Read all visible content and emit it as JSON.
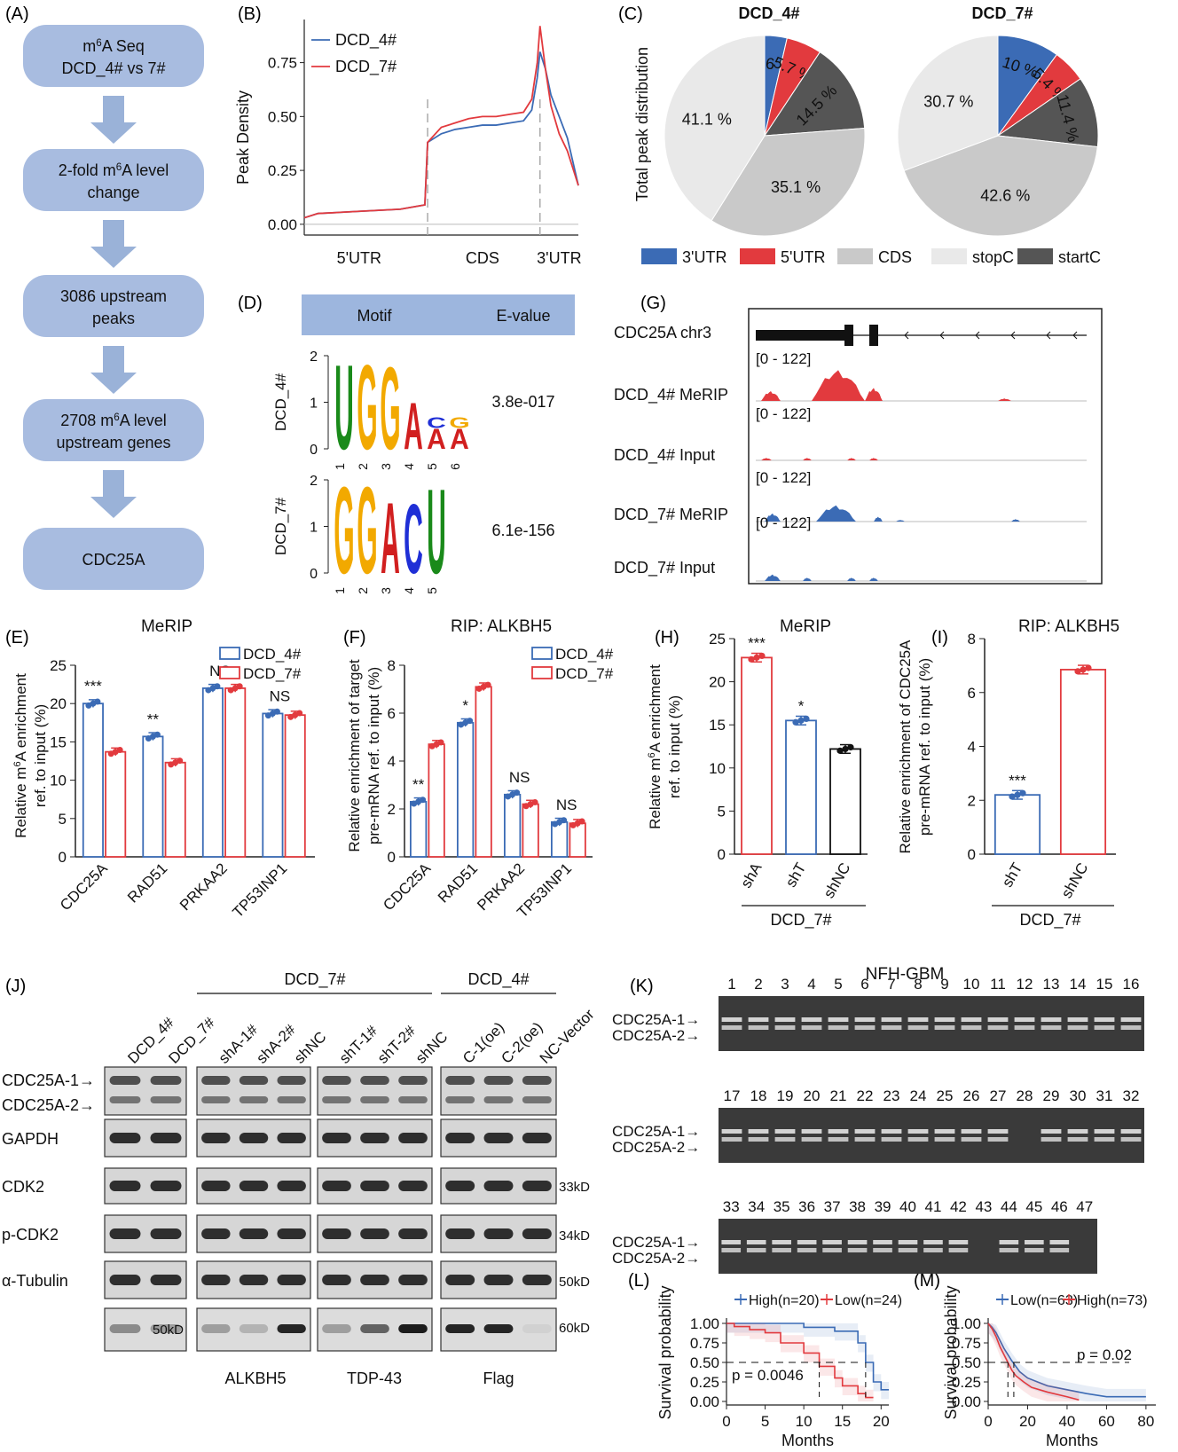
{
  "panel_labels": {
    "A": "(A)",
    "B": "(B)",
    "C": "(C)",
    "D": "(D)",
    "E": "(E)",
    "F": "(F)",
    "G": "(G)",
    "H": "(H)",
    "I": "(I)",
    "J": "(J)",
    "K": "(K)",
    "L": "(L)",
    "M": "(M)"
  },
  "colors": {
    "flow_box": "#a8bce0",
    "flow_arrow": "#9ab2d8",
    "blue": "#3b6bb5",
    "red": "#e23a3e",
    "gray_cds": "#c9c9c9",
    "gray_stop": "#e9e9e9",
    "gray_start": "#555555",
    "header": "#9db6de"
  },
  "flow": {
    "steps": [
      {
        "line1_pre": "m",
        "line1_sup": "6",
        "line1_post": "A Seq",
        "line2": "DCD_4# vs 7#"
      },
      {
        "line1_pre": "2-fold m",
        "line1_sup": "6",
        "line1_post": "A level",
        "line2": "change"
      },
      {
        "line1_pre": "3086 upstream",
        "line1_sup": "",
        "line1_post": "",
        "line2": "peaks"
      },
      {
        "line1_pre": "2708 m",
        "line1_sup": "6",
        "line1_post": "A level",
        "line2": "upstream genes"
      },
      {
        "line1_pre": "CDC25A",
        "line1_sup": "",
        "line1_post": "",
        "line2": ""
      }
    ]
  },
  "chart_data": [
    {
      "id": "B",
      "type": "line",
      "ylabel": "Peak Density",
      "x_categories": [
        "5'UTR",
        "CDS",
        "3'UTR"
      ],
      "yticks": [
        "0.00",
        "0.25",
        "0.50",
        "0.75"
      ],
      "ylim": [
        -0.05,
        0.95
      ],
      "series": [
        {
          "name": "DCD_4#",
          "color": "#3b6bb5",
          "points": [
            [
              0,
              0.03
            ],
            [
              0.05,
              0.05
            ],
            [
              0.2,
              0.06
            ],
            [
              0.35,
              0.07
            ],
            [
              0.44,
              0.09
            ],
            [
              0.45,
              0.38
            ],
            [
              0.5,
              0.42
            ],
            [
              0.55,
              0.44
            ],
            [
              0.6,
              0.45
            ],
            [
              0.65,
              0.46
            ],
            [
              0.7,
              0.46
            ],
            [
              0.75,
              0.47
            ],
            [
              0.8,
              0.48
            ],
            [
              0.83,
              0.53
            ],
            [
              0.85,
              0.68
            ],
            [
              0.86,
              0.8
            ],
            [
              0.88,
              0.72
            ],
            [
              0.9,
              0.6
            ],
            [
              0.93,
              0.5
            ],
            [
              0.96,
              0.4
            ],
            [
              1,
              0.18
            ]
          ]
        },
        {
          "name": "DCD_7#",
          "color": "#e23a3e",
          "points": [
            [
              0,
              0.03
            ],
            [
              0.05,
              0.05
            ],
            [
              0.2,
              0.06
            ],
            [
              0.35,
              0.07
            ],
            [
              0.44,
              0.09
            ],
            [
              0.45,
              0.38
            ],
            [
              0.5,
              0.45
            ],
            [
              0.55,
              0.47
            ],
            [
              0.6,
              0.49
            ],
            [
              0.65,
              0.5
            ],
            [
              0.7,
              0.5
            ],
            [
              0.75,
              0.51
            ],
            [
              0.8,
              0.52
            ],
            [
              0.83,
              0.58
            ],
            [
              0.85,
              0.75
            ],
            [
              0.86,
              0.92
            ],
            [
              0.88,
              0.72
            ],
            [
              0.9,
              0.55
            ],
            [
              0.93,
              0.42
            ],
            [
              0.96,
              0.34
            ],
            [
              1,
              0.18
            ]
          ]
        }
      ]
    },
    {
      "id": "C",
      "type": "pie",
      "ylabel": "Total peak distribution",
      "legend": [
        {
          "name": "3'UTR",
          "color": "#3b6bb5"
        },
        {
          "name": "5'UTR",
          "color": "#e23a3e"
        },
        {
          "name": "CDS",
          "color": "#c9c9c9"
        },
        {
          "name": "stopC",
          "color": "#e9e9e9"
        },
        {
          "name": "startC",
          "color": "#555555"
        }
      ],
      "pies": [
        {
          "title": "DCD_4#",
          "slices": [
            {
              "name": "3'UTR",
              "value": 3.6,
              "label": "3.6 %"
            },
            {
              "name": "5'UTR",
              "value": 5.7,
              "label": "5.7 %"
            },
            {
              "name": "startC",
              "value": 14.5,
              "label": "14.5 %"
            },
            {
              "name": "CDS",
              "value": 35.1,
              "label": "35.1 %"
            },
            {
              "name": "stopC",
              "value": 41.1,
              "label": "41.1 %"
            }
          ]
        },
        {
          "title": "DCD_7#",
          "slices": [
            {
              "name": "3'UTR",
              "value": 10,
              "label": "10 %"
            },
            {
              "name": "5'UTR",
              "value": 5.4,
              "label": "5.4 %"
            },
            {
              "name": "startC",
              "value": 11.4,
              "label": "11.4 %"
            },
            {
              "name": "CDS",
              "value": 42.6,
              "label": "42.6 %"
            },
            {
              "name": "stopC",
              "value": 30.7,
              "label": "30.7 %"
            }
          ]
        }
      ]
    },
    {
      "id": "E",
      "type": "bar",
      "title": "MeRIP",
      "ylabel_pre": "Relative m",
      "ylabel_sup": "6",
      "ylabel_post": "A enrichment",
      "ylabel2": "ref. to input (%)",
      "categories": [
        "CDC25A",
        "RAD51",
        "PRKAA2",
        "TP53INP1"
      ],
      "ylim": [
        0,
        25
      ],
      "yticks": [
        0,
        5,
        10,
        15,
        20,
        25
      ],
      "series": [
        {
          "name": "DCD_4#",
          "color": "#3b6bb5",
          "values": [
            20,
            15.7,
            22,
            18.7
          ]
        },
        {
          "name": "DCD_7#",
          "color": "#e23a3e",
          "values": [
            13.7,
            12.3,
            22,
            18.5
          ]
        }
      ],
      "significance": [
        "***",
        "**",
        "NS",
        "NS"
      ]
    },
    {
      "id": "F",
      "type": "bar",
      "title": "RIP: ALKBH5",
      "ylabel": "Relative enrichment of target",
      "ylabel2": "pre-mRNA ref. to input (%)",
      "categories": [
        "CDC25A",
        "RAD51",
        "PRKAA2",
        "TP53INP1"
      ],
      "ylim": [
        0,
        8
      ],
      "yticks": [
        0,
        2,
        4,
        6,
        8
      ],
      "series": [
        {
          "name": "DCD_4#",
          "color": "#3b6bb5",
          "values": [
            2.3,
            5.6,
            2.6,
            1.45
          ]
        },
        {
          "name": "DCD_7#",
          "color": "#e23a3e",
          "values": [
            4.7,
            7.1,
            2.2,
            1.4
          ]
        }
      ],
      "significance": [
        "**",
        "*",
        "NS",
        "NS"
      ]
    },
    {
      "id": "H",
      "type": "bar",
      "title": "MeRIP",
      "ylabel_pre": "Relative m",
      "ylabel_sup": "6",
      "ylabel_post": "A enrichment",
      "ylabel2": "ref. to input (%)",
      "categories": [
        "shA",
        "shT",
        "shNC"
      ],
      "group_label": "DCD_7#",
      "ylim": [
        0,
        25
      ],
      "yticks": [
        0,
        5,
        10,
        15,
        20,
        25
      ],
      "values": [
        22.8,
        15.5,
        12.2
      ],
      "colors": [
        "#e23a3e",
        "#3b6bb5",
        "#111111"
      ],
      "significance": [
        "***",
        "*",
        ""
      ]
    },
    {
      "id": "I",
      "type": "bar",
      "title": "RIP: ALKBH5",
      "ylabel": "Relative enrichment of CDC25A",
      "ylabel2": "pre-mRNA ref. to input (%)",
      "categories": [
        "shT",
        "shNC"
      ],
      "group_label": "DCD_7#",
      "ylim": [
        0,
        8
      ],
      "yticks": [
        0,
        2,
        4,
        6,
        8
      ],
      "values": [
        2.2,
        6.85
      ],
      "colors": [
        "#3b6bb5",
        "#e23a3e"
      ],
      "significance": [
        "***",
        ""
      ]
    },
    {
      "id": "L",
      "type": "line",
      "ylabel": "Survival probability",
      "xlabel": "Months",
      "xticks": [
        0,
        5,
        10,
        15,
        20
      ],
      "xlim": [
        0,
        21
      ],
      "yticks": [
        "0.00",
        "0.25",
        "0.50",
        "0.75",
        "1.00"
      ],
      "legend": [
        {
          "name": "High(n=20)",
          "color": "#3b6bb5"
        },
        {
          "name": "Low(n=24)",
          "color": "#e23a3e"
        }
      ],
      "pvalue": "p = 0.0046",
      "series": [
        {
          "name": "High(n=20)",
          "color": "#3b6bb5",
          "steps": [
            [
              0,
              1
            ],
            [
              10,
              1
            ],
            [
              10,
              0.95
            ],
            [
              14,
              0.95
            ],
            [
              14,
              0.9
            ],
            [
              17,
              0.9
            ],
            [
              17,
              0.75
            ],
            [
              18,
              0.75
            ],
            [
              18,
              0.5
            ],
            [
              19,
              0.5
            ],
            [
              19,
              0.25
            ],
            [
              20,
              0.25
            ],
            [
              20,
              0.15
            ],
            [
              21,
              0.15
            ]
          ]
        },
        {
          "name": "Low(n=24)",
          "color": "#e23a3e",
          "steps": [
            [
              0,
              1
            ],
            [
              1,
              1
            ],
            [
              1,
              0.96
            ],
            [
              3,
              0.96
            ],
            [
              3,
              0.92
            ],
            [
              5,
              0.92
            ],
            [
              5,
              0.88
            ],
            [
              7,
              0.88
            ],
            [
              7,
              0.75
            ],
            [
              10,
              0.75
            ],
            [
              10,
              0.62
            ],
            [
              12,
              0.62
            ],
            [
              12,
              0.45
            ],
            [
              14,
              0.45
            ],
            [
              14,
              0.3
            ],
            [
              15,
              0.3
            ],
            [
              15,
              0.2
            ],
            [
              17,
              0.2
            ],
            [
              17,
              0.1
            ],
            [
              18,
              0.1
            ],
            [
              18,
              0.05
            ],
            [
              19,
              0.05
            ]
          ]
        }
      ]
    },
    {
      "id": "M",
      "type": "line",
      "ylabel": "Survival probability",
      "xlabel": "Months",
      "xticks": [
        0,
        20,
        40,
        60,
        80
      ],
      "xlim": [
        0,
        85
      ],
      "yticks": [
        "0.00",
        "0.25",
        "0.50",
        "0.75",
        "1.00"
      ],
      "legend": [
        {
          "name": "Low(n=63)",
          "color": "#3b6bb5"
        },
        {
          "name": "High(n=73)",
          "color": "#e23a3e"
        }
      ],
      "pvalue": "p = 0.02",
      "series": [
        {
          "name": "Low(n=63)",
          "color": "#3b6bb5",
          "steps": [
            [
              0,
              1
            ],
            [
              2,
              0.95
            ],
            [
              4,
              0.88
            ],
            [
              6,
              0.78
            ],
            [
              8,
              0.68
            ],
            [
              10,
              0.6
            ],
            [
              12,
              0.52
            ],
            [
              14,
              0.45
            ],
            [
              16,
              0.38
            ],
            [
              20,
              0.3
            ],
            [
              25,
              0.25
            ],
            [
              30,
              0.2
            ],
            [
              40,
              0.15
            ],
            [
              50,
              0.1
            ],
            [
              60,
              0.06
            ],
            [
              80,
              0.06
            ]
          ]
        },
        {
          "name": "High(n=73)",
          "color": "#e23a3e",
          "steps": [
            [
              0,
              1
            ],
            [
              2,
              0.93
            ],
            [
              4,
              0.83
            ],
            [
              6,
              0.7
            ],
            [
              8,
              0.6
            ],
            [
              10,
              0.5
            ],
            [
              12,
              0.4
            ],
            [
              14,
              0.33
            ],
            [
              18,
              0.25
            ],
            [
              22,
              0.18
            ],
            [
              30,
              0.12
            ],
            [
              40,
              0.06
            ],
            [
              46,
              0.02
            ]
          ]
        }
      ]
    }
  ],
  "motif": {
    "header_motif": "Motif",
    "header_evalue": "E-value",
    "rows": [
      {
        "label": "DCD_4#",
        "evalue": "3.8e-017",
        "positions": [
          "1",
          "2",
          "3",
          "4",
          "5",
          "6"
        ],
        "yticks": [
          "0",
          "1",
          "2"
        ]
      },
      {
        "label": "DCD_7#",
        "evalue": "6.1e-156",
        "positions": [
          "1",
          "2",
          "3",
          "4",
          "5"
        ],
        "yticks": [
          "0",
          "1",
          "2"
        ]
      }
    ]
  },
  "tracks": {
    "gene": "CDC25A",
    "chrom": "chr3",
    "range": "[0 - 122]",
    "rows": [
      {
        "label": "DCD_4#  MeRIP",
        "color": "#e23a3e"
      },
      {
        "label": "DCD_4#  Input",
        "color": "#e23a3e"
      },
      {
        "label": "DCD_7#  MeRIP",
        "color": "#3b6bb5"
      },
      {
        "label": "DCD_7#  Input",
        "color": "#3b6bb5"
      }
    ]
  },
  "western": {
    "group_dcd7": "DCD_7#",
    "group_dcd4": "DCD_4#",
    "lanes": [
      [
        "DCD_4#",
        "DCD_7#"
      ],
      [
        "shA-1#",
        "shA-2#",
        "shNC"
      ],
      [
        "shT-1#",
        "shT-2#",
        "shNC"
      ],
      [
        "C-1(oe)",
        "C-2(oe)",
        "NC-Vector"
      ]
    ],
    "rows": [
      "CDC25A-1→",
      "CDC25A-2→",
      "GAPDH",
      "CDK2",
      "p-CDK2",
      "α-Tubulin"
    ],
    "kd": [
      "33kD",
      "34kD",
      "50kD",
      "60kD"
    ],
    "bottom_kd": "50kD",
    "bottom_labels": [
      "ALKBH5",
      "TDP-43",
      "Flag"
    ]
  },
  "gel": {
    "title": "NFH-GBM",
    "band1": "CDC25A-1→",
    "band2": "CDC25A-2→",
    "rows": [
      [
        "1",
        "2",
        "3",
        "4",
        "5",
        "6",
        "7",
        "8",
        "9",
        "10",
        "11",
        "12",
        "13",
        "14",
        "15",
        "16"
      ],
      [
        "17",
        "18",
        "19",
        "20",
        "21",
        "22",
        "23",
        "24",
        "25",
        "26",
        "27",
        "28",
        "29",
        "30",
        "31",
        "32"
      ],
      [
        "33",
        "34",
        "35",
        "36",
        "37",
        "38",
        "39",
        "40",
        "41",
        "42",
        "43",
        "44",
        "45",
        "46",
        "47"
      ]
    ]
  }
}
